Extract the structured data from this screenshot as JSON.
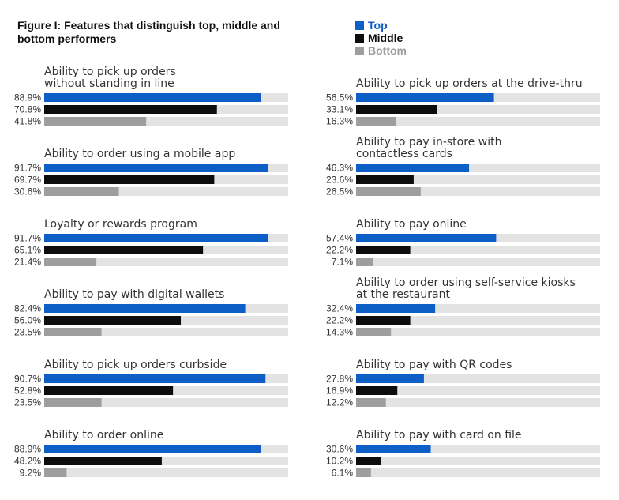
{
  "title": "Figure I: Features that distinguish top, middle and bottom performers",
  "legend": [
    {
      "label": "Top",
      "color": "#0d5fc6"
    },
    {
      "label": "Middle",
      "color": "#0d0d0d"
    },
    {
      "label": "Bottom",
      "color": "#9e9e9e"
    }
  ],
  "colors": {
    "track": "#e3e3e3"
  },
  "chart_data": {
    "type": "bar",
    "orientation": "horizontal",
    "series_names": [
      "Top",
      "Middle",
      "Bottom"
    ],
    "xlim": [
      0,
      100
    ],
    "grid": false,
    "legend_position": "top-right",
    "panels": [
      {
        "title": [
          "Ability to pick up orders",
          "without standing in line"
        ],
        "values": [
          88.9,
          70.8,
          41.8
        ],
        "labels": [
          "88.9%",
          "70.8%",
          "41.8%"
        ]
      },
      {
        "title": [
          "Ability to order using a mobile app"
        ],
        "values": [
          91.7,
          69.7,
          30.6
        ],
        "labels": [
          "91.7%",
          "69.7%",
          "30.6%"
        ]
      },
      {
        "title": [
          "Loyalty or rewards program"
        ],
        "values": [
          91.7,
          65.1,
          21.4
        ],
        "labels": [
          "91.7%",
          "65.1%",
          "21.4%"
        ]
      },
      {
        "title": [
          "Ability to pay with digital wallets"
        ],
        "values": [
          82.4,
          56.0,
          23.5
        ],
        "labels": [
          "82.4%",
          "56.0%",
          "23.5%"
        ]
      },
      {
        "title": [
          "Ability to pick up orders curbside"
        ],
        "values": [
          90.7,
          52.8,
          23.5
        ],
        "labels": [
          "90.7%",
          "52.8%",
          "23.5%"
        ]
      },
      {
        "title": [
          "Ability to order online"
        ],
        "values": [
          88.9,
          48.2,
          9.2
        ],
        "labels": [
          "88.9%",
          "48.2%",
          "9.2%"
        ]
      },
      {
        "title": [
          "Ability to pick up orders at the drive-thru"
        ],
        "values": [
          56.5,
          33.1,
          16.3
        ],
        "labels": [
          "56.5%",
          "33.1%",
          "16.3%"
        ]
      },
      {
        "title": [
          "Ability to pay in-store with",
          "contactless cards"
        ],
        "values": [
          46.3,
          23.6,
          26.5
        ],
        "labels": [
          "46.3%",
          "23.6%",
          "26.5%"
        ]
      },
      {
        "title": [
          "Ability to pay online"
        ],
        "values": [
          57.4,
          22.2,
          7.1
        ],
        "labels": [
          "57.4%",
          "22.2%",
          "7.1%"
        ]
      },
      {
        "title": [
          "Ability to order using self-service kiosks",
          "at the restaurant"
        ],
        "values": [
          32.4,
          22.2,
          14.3
        ],
        "labels": [
          "32.4%",
          "22.2%",
          "14.3%"
        ]
      },
      {
        "title": [
          "Ability to pay with QR codes"
        ],
        "values": [
          27.8,
          16.9,
          12.2
        ],
        "labels": [
          "27.8%",
          "16.9%",
          "12.2%"
        ]
      },
      {
        "title": [
          "Ability to pay with card on file"
        ],
        "values": [
          30.6,
          10.2,
          6.1
        ],
        "labels": [
          "30.6%",
          "10.2%",
          "6.1%"
        ]
      }
    ]
  }
}
